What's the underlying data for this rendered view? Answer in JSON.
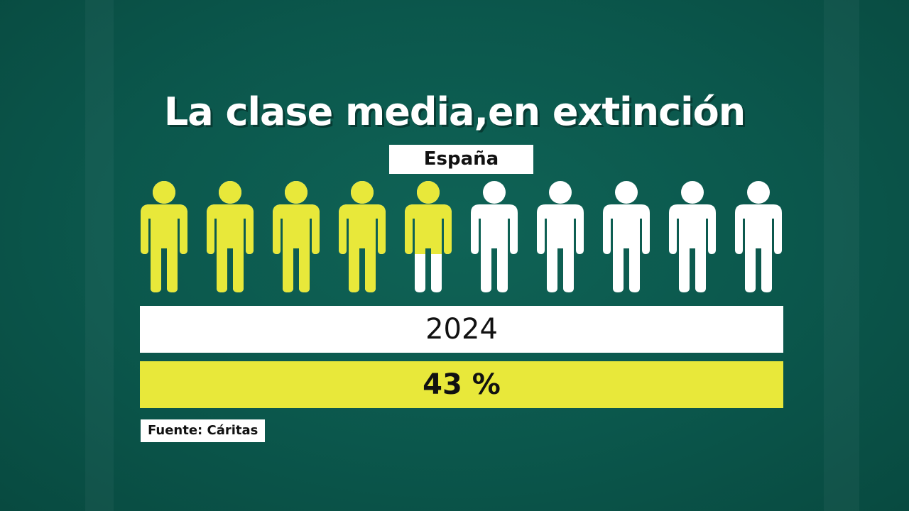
{
  "chart_data": {
    "type": "pictogram",
    "title": "La clase media,en extinción",
    "subtitle": "España",
    "category": "2024",
    "value_label": "43 %",
    "value": 43,
    "icon_count": 10,
    "icon": "person-icon",
    "source": "Fuente: Cáritas",
    "colors": {
      "filled": "#e8e83a",
      "empty": "#ffffff",
      "background": "#0b574c",
      "value_bar": "#e8e83a"
    }
  }
}
